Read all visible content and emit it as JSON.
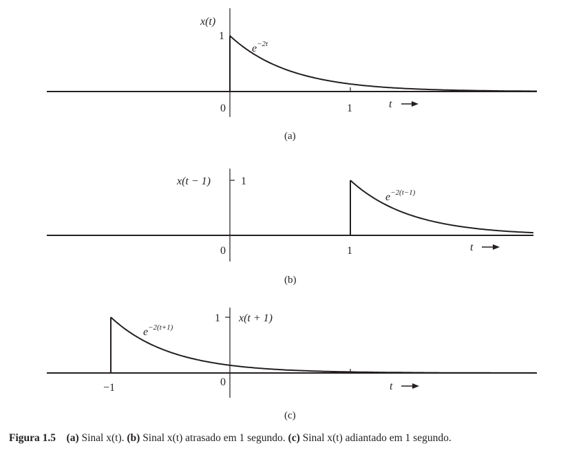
{
  "panels": [
    {
      "id": "a",
      "y_label": "x(t)",
      "peak_label": "1",
      "expr_base": "e",
      "expr_exponent": "−2t",
      "origin_label": "0",
      "tick_label": "1",
      "t_label": "t",
      "panel_label": "(a)"
    },
    {
      "id": "b",
      "y_label": "x(t − 1)",
      "peak_label": "1",
      "expr_base": "e",
      "expr_exponent": "−2(t−1)",
      "origin_label": "0",
      "tick_label": "1",
      "t_label": "t",
      "panel_label": "(b)"
    },
    {
      "id": "c",
      "y_label": "x(t + 1)",
      "peak_label": "1",
      "expr_base": "e",
      "expr_exponent": "−2(t+1)",
      "origin_label": "0",
      "tick_label": "−1",
      "t_label": "t",
      "panel_label": "(c)"
    }
  ],
  "caption": {
    "figure": "Figura 1.5",
    "a_tag": "(a)",
    "a_text": "Sinal x(t).",
    "b_tag": "(b)",
    "b_text": "Sinal x(t) atrasado em 1 segundo.",
    "c_tag": "(c)",
    "c_text": "Sinal x(t) adiantado em 1 segundo."
  }
}
